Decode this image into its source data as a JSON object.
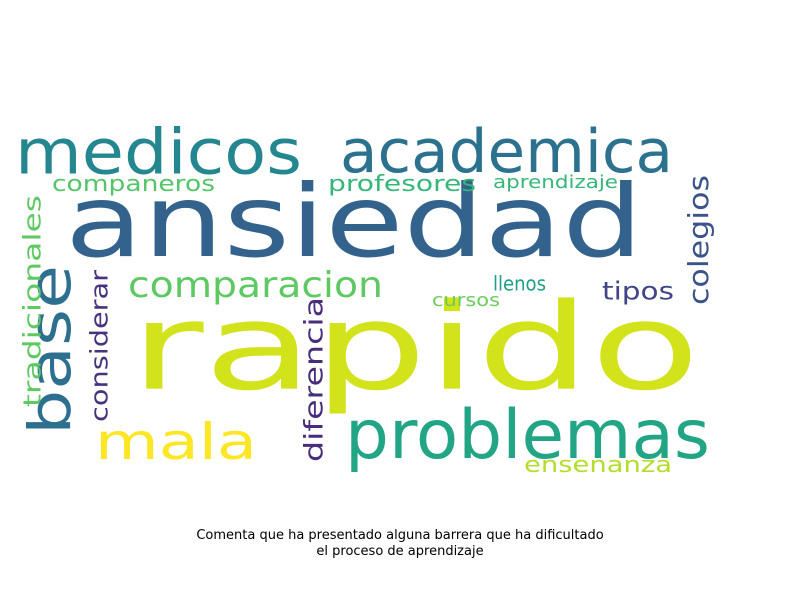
{
  "wordcloud": {
    "words": [
      {
        "text": "rapido",
        "color": "#d2e21b"
      },
      {
        "text": "ansiedad",
        "color": "#33638d"
      },
      {
        "text": "medicos",
        "color": "#24868e"
      },
      {
        "text": "academica",
        "color": "#2c728e"
      },
      {
        "text": "problemas",
        "color": "#21a585"
      },
      {
        "text": "base",
        "color": "#2d6f8e"
      },
      {
        "text": "mala",
        "color": "#fde725"
      },
      {
        "text": "comparacion",
        "color": "#5ec962"
      },
      {
        "text": "companeros",
        "color": "#54c568"
      },
      {
        "text": "profesores",
        "color": "#35b779"
      },
      {
        "text": "aprendizaje",
        "color": "#35b779"
      },
      {
        "text": "tradicionales",
        "color": "#5ec962"
      },
      {
        "text": "considerar",
        "color": "#46327e"
      },
      {
        "text": "diferencia",
        "color": "#472d7b"
      },
      {
        "text": "colegios",
        "color": "#3b528b"
      },
      {
        "text": "tipos",
        "color": "#414487"
      },
      {
        "text": "llenos",
        "color": "#1f9e89"
      },
      {
        "text": "cursos",
        "color": "#6ccd5a"
      },
      {
        "text": "ensenanza",
        "color": "#b5de2b"
      }
    ]
  },
  "caption": {
    "line1": "Comenta que ha presentado alguna barrera que ha dificultado",
    "line2": "el proceso de aprendizaje"
  }
}
